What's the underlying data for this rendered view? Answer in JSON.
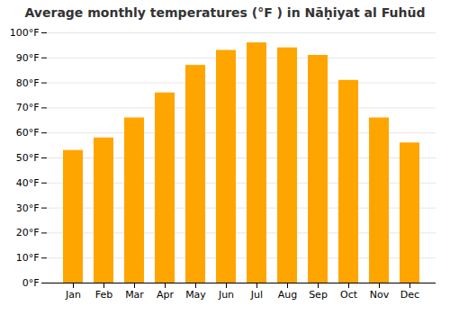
{
  "chart_data": {
    "type": "bar",
    "title": "Average monthly temperatures (°F ) in Nāḥiyat al Fuhūd",
    "categories": [
      "Jan",
      "Feb",
      "Mar",
      "Apr",
      "May",
      "Jun",
      "Jul",
      "Aug",
      "Sep",
      "Oct",
      "Nov",
      "Dec"
    ],
    "values": [
      53,
      58,
      66,
      76,
      87,
      93,
      96,
      94,
      91,
      81,
      66,
      56
    ],
    "color": "#FFA500",
    "ylim": [
      0,
      100
    ],
    "yticks": [
      {
        "value": 0,
        "label": "0°F"
      },
      {
        "value": 10,
        "label": "10°F"
      },
      {
        "value": 20,
        "label": "20°F"
      },
      {
        "value": 30,
        "label": "30°F"
      },
      {
        "value": 40,
        "label": "40°F"
      },
      {
        "value": 50,
        "label": "50°F"
      },
      {
        "value": 60,
        "label": "60°F"
      },
      {
        "value": 70,
        "label": "70°F"
      },
      {
        "value": 80,
        "label": "80°F"
      },
      {
        "value": 90,
        "label": "90°F"
      },
      {
        "value": 100,
        "label": "100°F"
      }
    ],
    "grid": true
  }
}
